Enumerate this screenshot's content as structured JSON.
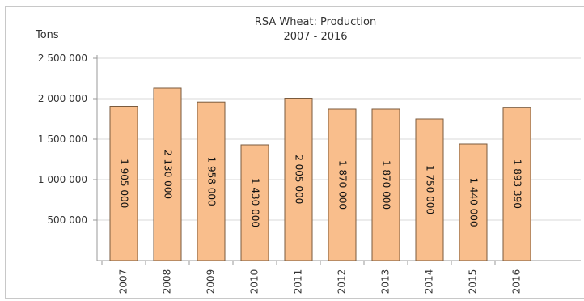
{
  "chart_data": {
    "type": "bar",
    "title_lines": [
      "RSA Wheat: Production",
      "2007 - 2016"
    ],
    "ylabel": "Tons",
    "xlabel": "",
    "categories": [
      "2007",
      "2008",
      "2009",
      "2010",
      "2011",
      "2012",
      "2013",
      "2014",
      "2015",
      "2016"
    ],
    "values": [
      1905000,
      2130000,
      1958000,
      1430000,
      2005000,
      1870000,
      1870000,
      1750000,
      1440000,
      1893390
    ],
    "data_labels": [
      "1 905 000",
      "2 130 000",
      "1 958 000",
      "1 430 000",
      "2 005 000",
      "1 870 000",
      "1 870 000",
      "1 750 000",
      "1 440 000",
      "1 893 390"
    ],
    "ylim": [
      0,
      2500000
    ],
    "y_ticks": [
      500000,
      1000000,
      1500000,
      2000000,
      2500000
    ],
    "y_tick_labels": [
      "500 000",
      "1 000 000",
      "1 500 000",
      "2 000 000",
      "2 500 000"
    ],
    "grid": true,
    "legend": "none",
    "colors": {
      "bar_fill": "#f9be8c",
      "bar_stroke": "#7a5a3c",
      "grid": "#d9d9d9",
      "axis": "#999999",
      "frame": "#c8c8c8"
    }
  }
}
